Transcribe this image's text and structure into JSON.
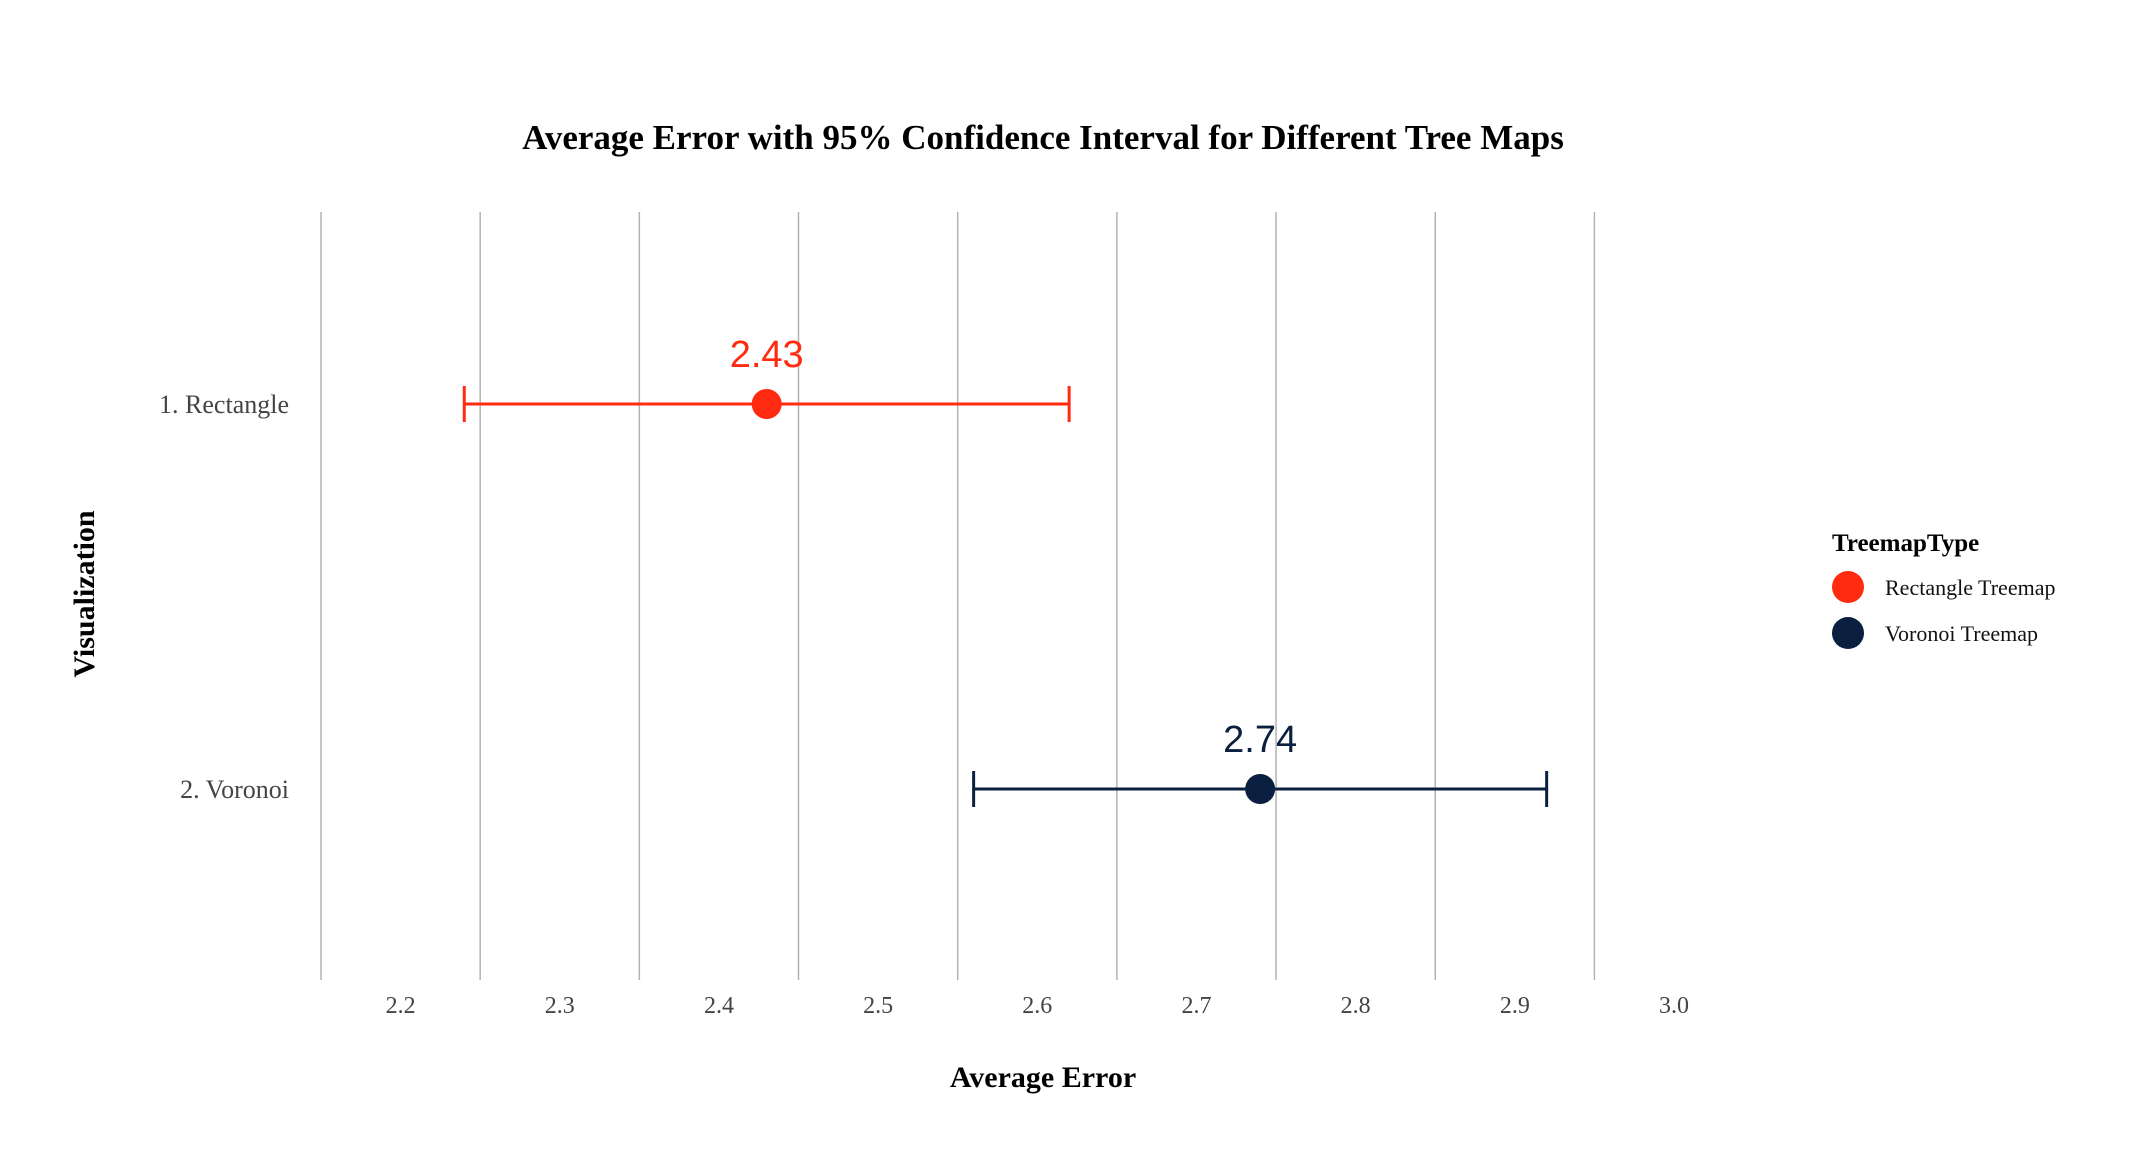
{
  "chart_data": {
    "type": "errorbar",
    "title": "Average Error with 95% Confidence Interval for Different Tree Maps",
    "xlabel": "Average Error",
    "ylabel": "Visualization",
    "xlim": [
      2.15,
      3.0
    ],
    "x_ticks": [
      2.2,
      2.3,
      2.4,
      2.5,
      2.6,
      2.7,
      2.8,
      2.9,
      3.0
    ],
    "x_tick_labels": [
      "2.2",
      "2.3",
      "2.4",
      "2.5",
      "2.6",
      "2.7",
      "2.8",
      "2.9",
      "3.0"
    ],
    "x_gridlines": [
      2.15,
      2.25,
      2.35,
      2.45,
      2.55,
      2.65,
      2.75,
      2.85,
      2.95
    ],
    "categories": [
      "1. Rectangle",
      "2. Voronoi"
    ],
    "grid": true,
    "legend": {
      "title": "TreemapType",
      "position": "right",
      "entries": [
        "Rectangle Treemap",
        "Voronoi Treemap"
      ]
    },
    "series": [
      {
        "name": "Rectangle Treemap",
        "category": "1. Rectangle",
        "mean": 2.43,
        "ci_low": 2.24,
        "ci_high": 2.62,
        "label": "2.43",
        "color": "#ff2a0f"
      },
      {
        "name": "Voronoi Treemap",
        "category": "2. Voronoi",
        "mean": 2.74,
        "ci_low": 2.56,
        "ci_high": 2.92,
        "label": "2.74",
        "color": "#0b2040"
      }
    ]
  }
}
